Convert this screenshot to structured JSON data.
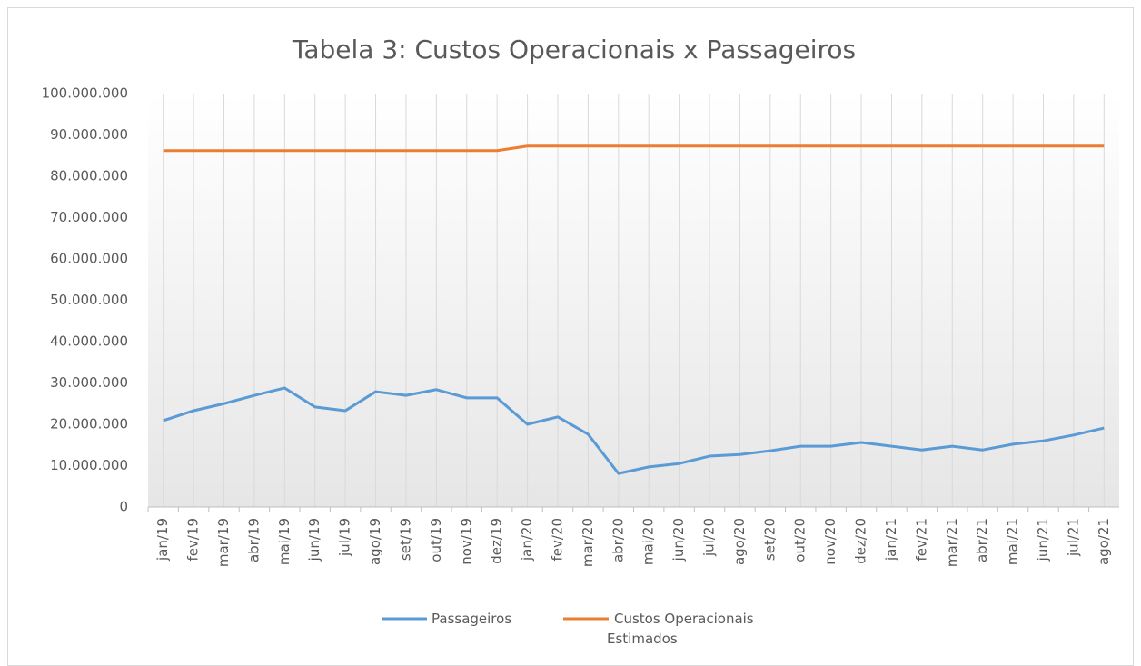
{
  "chart_data": {
    "type": "line",
    "title": "Tabela 3: Custos Operacionais x Passageiros",
    "categories": [
      "jan/19",
      "fev/19",
      "mar/19",
      "abr/19",
      "mai/19",
      "jun/19",
      "jul/19",
      "ago/19",
      "set/19",
      "out/19",
      "nov/19",
      "dez/19",
      "jan/20",
      "fev/20",
      "mar/20",
      "abr/20",
      "mai/20",
      "jun/20",
      "jul/20",
      "ago/20",
      "set/20",
      "out/20",
      "nov/20",
      "dez/20",
      "jan/21",
      "fev/21",
      "mar/21",
      "abr/21",
      "mai/21",
      "jun/21",
      "jul/21",
      "ago/21"
    ],
    "series": [
      {
        "name": "Passageiros",
        "color": "#5b9bd5",
        "values": [
          20900000,
          23300000,
          25000000,
          27000000,
          28800000,
          24200000,
          23300000,
          27900000,
          27000000,
          28400000,
          26400000,
          26400000,
          20000000,
          21800000,
          17600000,
          8100000,
          9700000,
          10500000,
          12300000,
          12700000,
          13600000,
          14700000,
          14700000,
          15600000,
          14700000,
          13800000,
          14700000,
          13800000,
          15200000,
          16000000,
          17400000,
          19100000
        ]
      },
      {
        "name": "Custos Operacionais Estimados",
        "color": "#ed7d31",
        "values": [
          86200000,
          86200000,
          86200000,
          86200000,
          86200000,
          86200000,
          86200000,
          86200000,
          86200000,
          86200000,
          86200000,
          86200000,
          87300000,
          87300000,
          87300000,
          87300000,
          87300000,
          87300000,
          87300000,
          87300000,
          87300000,
          87300000,
          87300000,
          87300000,
          87300000,
          87300000,
          87300000,
          87300000,
          87300000,
          87300000,
          87300000,
          87300000
        ]
      }
    ],
    "ylim": [
      0,
      100000000
    ],
    "yticks": [
      0,
      {
        "value": 10000000,
        "label": "10.000.000"
      },
      {
        "value": 20000000,
        "label": "20.000.000"
      },
      {
        "value": 30000000,
        "label": "30.000.000"
      },
      {
        "value": 40000000,
        "label": "40.000.000"
      },
      {
        "value": 50000000,
        "label": "50.000.000"
      },
      {
        "value": 60000000,
        "label": "60.000.000"
      },
      {
        "value": 70000000,
        "label": "70.000.000"
      },
      {
        "value": 80000000,
        "label": "80.000.000"
      },
      {
        "value": 90000000,
        "label": "90.000.000"
      },
      {
        "value": 100000000,
        "label": "100.000.000"
      }
    ],
    "grid": "x",
    "legend": "bottom"
  }
}
